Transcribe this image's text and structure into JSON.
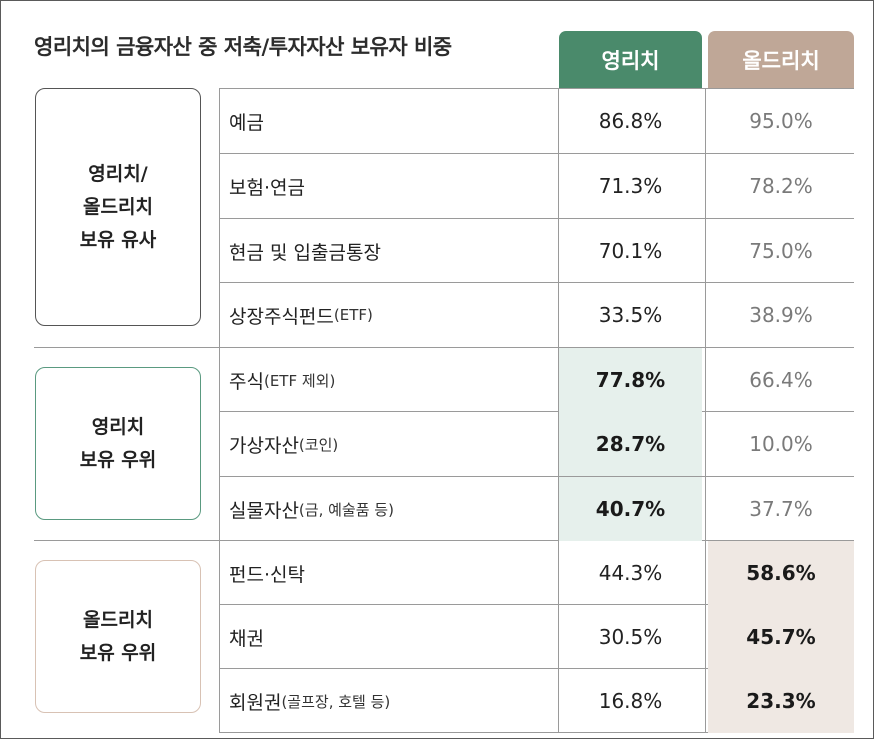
{
  "title": "영리치의 금융자산 중 저축/투자자산 보유자 비중",
  "columns": {
    "young": "영리치",
    "old": "올드리치"
  },
  "groups": [
    {
      "label": "영리치/\n올드리치\n보유 유사"
    },
    {
      "label": "영리치\n보유 우위"
    },
    {
      "label": "올드리치\n보유 우위"
    }
  ],
  "chart_data": {
    "type": "table",
    "title": "영리치의 금융자산 중 저축/투자자산 보유자 비중",
    "series": [
      {
        "name": "영리치",
        "values": [
          "86.8%",
          "71.3%",
          "70.1%",
          "33.5%",
          "77.8%",
          "28.7%",
          "40.7%",
          "44.3%",
          "30.5%",
          "16.8%"
        ]
      },
      {
        "name": "올드리치",
        "values": [
          "95.0%",
          "78.2%",
          "75.0%",
          "38.9%",
          "66.4%",
          "10.0%",
          "37.7%",
          "58.6%",
          "45.7%",
          "23.3%"
        ]
      }
    ],
    "rows": [
      {
        "main": "예금",
        "sub": "",
        "young": "86.8%",
        "old": "95.0%"
      },
      {
        "main": "보험·연금",
        "sub": "",
        "young": "71.3%",
        "old": "78.2%"
      },
      {
        "main": "현금 및 입출금통장",
        "sub": "",
        "young": "70.1%",
        "old": "75.0%"
      },
      {
        "main": "상장주식펀드",
        "sub": "(ETF)",
        "young": "33.5%",
        "old": "38.9%"
      },
      {
        "main": "주식",
        "sub": "(ETF 제외)",
        "young": "77.8%",
        "old": "66.4%"
      },
      {
        "main": "가상자산",
        "sub": "(코인)",
        "young": "28.7%",
        "old": "10.0%"
      },
      {
        "main": "실물자산",
        "sub": "(금, 예술품 등)",
        "young": "40.7%",
        "old": "37.7%"
      },
      {
        "main": "펀드·신탁",
        "sub": "",
        "young": "44.3%",
        "old": "58.6%"
      },
      {
        "main": "채권",
        "sub": "",
        "young": "30.5%",
        "old": "45.7%"
      },
      {
        "main": "회원권",
        "sub": "(골프장, 호텔 등)",
        "young": "16.8%",
        "old": "23.3%"
      }
    ]
  }
}
